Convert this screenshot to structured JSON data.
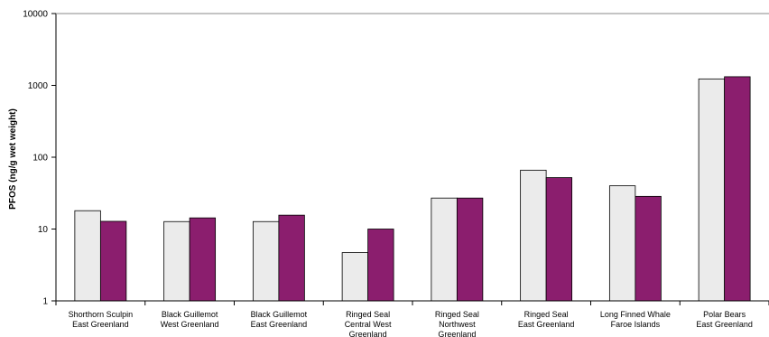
{
  "chart_data": {
    "type": "bar",
    "ylabel": "PFOS (ng/g wet weight)",
    "yscale": "log",
    "ylim": [
      1,
      10000
    ],
    "yticks": [
      "1",
      "10",
      "100",
      "1000",
      "10000"
    ],
    "grid": false,
    "legend": "none",
    "categories": [
      [
        "Shorthorn Sculpin",
        "East Greenland"
      ],
      [
        "Black Guillemot",
        "West Greenland"
      ],
      [
        "Black Guillemot",
        "East Greenland"
      ],
      [
        "Ringed Seal",
        "Central West",
        "Greenland"
      ],
      [
        "Ringed Seal",
        "Northwest",
        "Greenland"
      ],
      [
        "Ringed Seal",
        "East Greenland"
      ],
      [
        "Long Finned Whale",
        "Faroe Islands"
      ],
      [
        "Polar Bears",
        "East Greenland"
      ]
    ],
    "series": [
      {
        "color": "#ebebeb",
        "values": [
          18,
          12.7,
          12.7,
          4.7,
          27,
          66,
          40,
          1230
        ]
      },
      {
        "color": "#8b1e6e",
        "values": [
          12.8,
          14.3,
          15.6,
          10,
          27,
          52,
          28.5,
          1320
        ]
      }
    ]
  }
}
